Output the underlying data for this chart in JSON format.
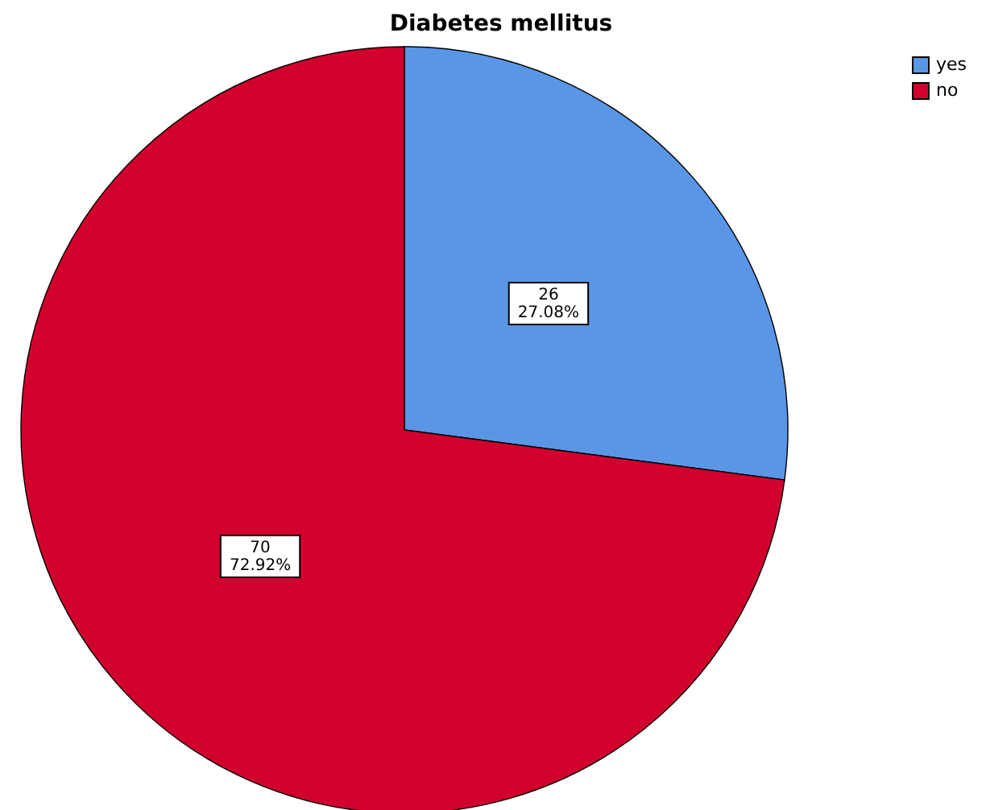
{
  "chart_data": {
    "type": "pie",
    "title": "Diabetes mellitus",
    "categories": [
      "yes",
      "no"
    ],
    "values": [
      26,
      70
    ],
    "colors": [
      "#5a96e6",
      "#d2002d"
    ],
    "value_labels": [
      "26\n27.08%",
      "70\n72.92%"
    ],
    "legend": "top right"
  }
}
